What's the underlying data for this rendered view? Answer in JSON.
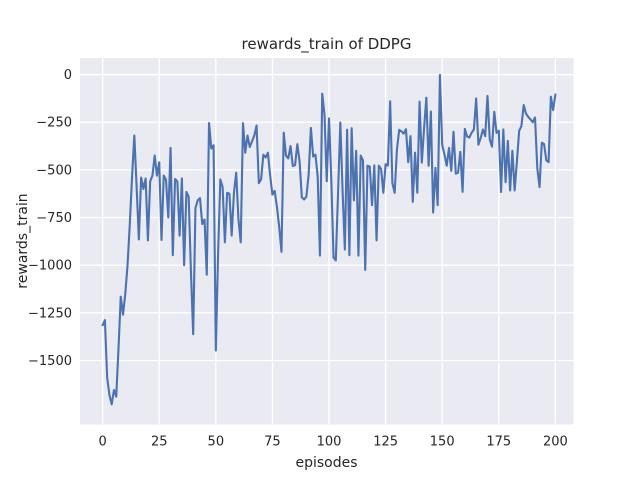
{
  "figure": {
    "title": "rewards_train of DDPG",
    "xlabel": "episodes",
    "ylabel": "rewards_train"
  },
  "chart_data": {
    "type": "line",
    "title": "rewards_train of DDPG",
    "xlabel": "episodes",
    "ylabel": "rewards_train",
    "series_name": "rewards_train",
    "x_start": 0,
    "x_step": 1,
    "values": [
      -1315,
      -1288,
      -1590,
      -1682,
      -1730,
      -1655,
      -1690,
      -1440,
      -1165,
      -1260,
      -1150,
      -1000,
      -785,
      -535,
      -320,
      -586,
      -865,
      -540,
      -600,
      -545,
      -870,
      -560,
      -530,
      -425,
      -530,
      -460,
      -868,
      -530,
      -552,
      -750,
      -385,
      -948,
      -548,
      -560,
      -845,
      -545,
      -1000,
      -616,
      -640,
      -1030,
      -1362,
      -700,
      -660,
      -648,
      -784,
      -760,
      -1050,
      -254,
      -388,
      -371,
      -1448,
      -939,
      -550,
      -590,
      -880,
      -620,
      -625,
      -845,
      -620,
      -515,
      -760,
      -880,
      -255,
      -410,
      -320,
      -380,
      -350,
      -320,
      -267,
      -570,
      -550,
      -420,
      -435,
      -410,
      -530,
      -630,
      -610,
      -695,
      -800,
      -930,
      -305,
      -425,
      -440,
      -375,
      -480,
      -475,
      -365,
      -455,
      -645,
      -655,
      -640,
      -525,
      -280,
      -430,
      -420,
      -535,
      -950,
      -100,
      -210,
      -560,
      -230,
      -550,
      -960,
      -975,
      -618,
      -252,
      -613,
      -918,
      -289,
      -948,
      -281,
      -660,
      -400,
      -950,
      -425,
      -450,
      -1025,
      -478,
      -483,
      -685,
      -476,
      -870,
      -478,
      -495,
      -620,
      -470,
      -478,
      -140,
      -570,
      -620,
      -395,
      -290,
      -298,
      -310,
      -287,
      -460,
      -323,
      -668,
      -410,
      -620,
      -142,
      -462,
      -280,
      -121,
      -478,
      -194,
      -724,
      -490,
      -685,
      -2,
      -368,
      -420,
      -478,
      -385,
      -505,
      -300,
      -520,
      -515,
      -405,
      -615,
      -285,
      -325,
      -330,
      -305,
      -288,
      -125,
      -368,
      -332,
      -288,
      -323,
      -112,
      -340,
      -378,
      -195,
      -306,
      -295,
      -616,
      -288,
      -565,
      -348,
      -608,
      -400,
      -608,
      -455,
      -295,
      -270,
      -160,
      -205,
      -222,
      -235,
      -250,
      -225,
      -490,
      -590,
      -357,
      -365,
      -450,
      -460,
      -116,
      -186,
      -104
    ],
    "xlim": [
      -10,
      208
    ],
    "ylim": [
      -1836,
      87
    ],
    "xticks": [
      0,
      25,
      50,
      75,
      100,
      125,
      150,
      175,
      200
    ],
    "xtick_labels": [
      "0",
      "25",
      "50",
      "75",
      "100",
      "125",
      "150",
      "175",
      "200"
    ],
    "yticks": [
      0,
      -250,
      -500,
      -750,
      -1000,
      -1250,
      -1500
    ],
    "ytick_labels": [
      "0",
      "−250",
      "−500",
      "−750",
      "−1000",
      "−1250",
      "−1500"
    ],
    "grid": true,
    "legend": "none",
    "line_color": "#4c72b0",
    "plot_bg": "#eaeaf2",
    "grid_color": "#ffffff",
    "text_color": "#262626",
    "figure_bg": "#ffffff"
  }
}
